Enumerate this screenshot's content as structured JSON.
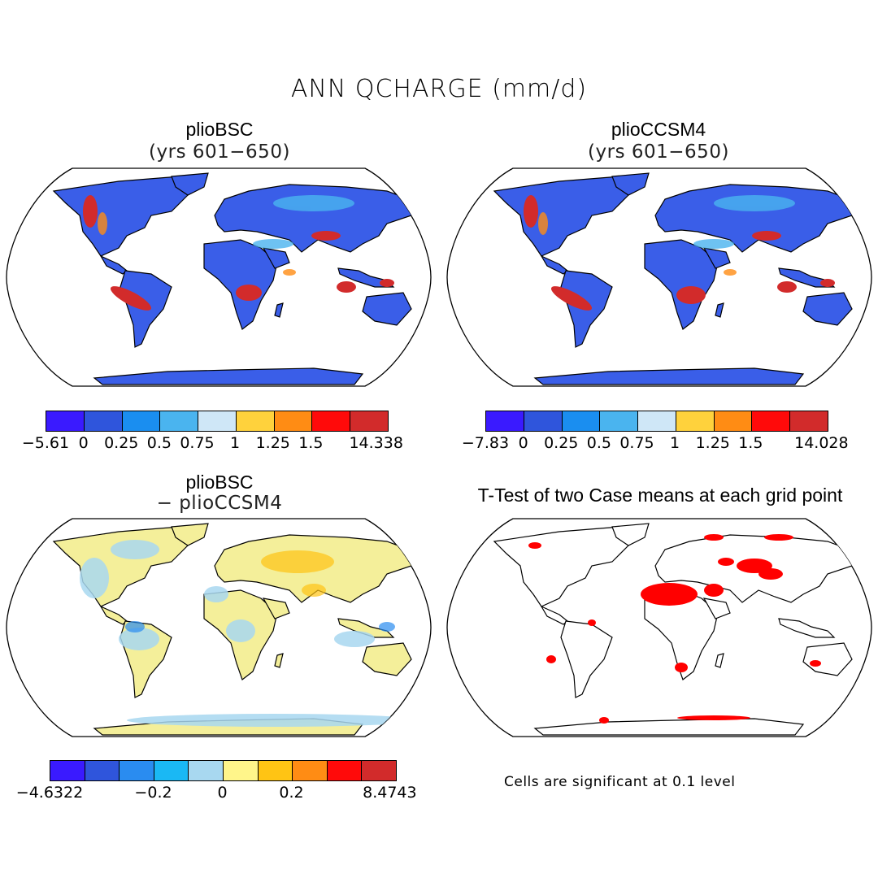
{
  "title": "ANN QCHARGE (mm/d)",
  "panels": {
    "top_left": {
      "title": "plioBSC",
      "subtitle": "(yrs 601−650)"
    },
    "top_right": {
      "title": "plioCCSM4",
      "subtitle": "(yrs 601−650)"
    },
    "bottom_left": {
      "title": "plioBSC",
      "subtitle": "− plioCCSM4"
    },
    "bottom_right": {
      "title": "T-Test of two Case means at each grid point"
    }
  },
  "colorbars": {
    "top_left": {
      "labels": [
        "−5.61",
        "0",
        "0.25",
        "0.5",
        "0.75",
        "1",
        "1.25",
        "1.5",
        "14.338"
      ],
      "colors": [
        "#3a1aff",
        "#2f55dc",
        "#1a8ef0",
        "#4ab4ef",
        "#cfe7f7",
        "#ffd23c",
        "#ff8c14",
        "#ff0a0a",
        "#d22b2b"
      ]
    },
    "top_right": {
      "labels": [
        "−7.83",
        "0",
        "0.25",
        "0.5",
        "0.75",
        "1",
        "1.25",
        "1.5",
        "14.028"
      ],
      "colors": [
        "#3a1aff",
        "#2f55dc",
        "#1a8ef0",
        "#4ab4ef",
        "#cfe7f7",
        "#ffd23c",
        "#ff8c14",
        "#ff0a0a",
        "#d22b2b"
      ]
    },
    "bottom_left": {
      "labels": [
        "−4.6322",
        "−0.2",
        "0",
        "0.2",
        "8.4743"
      ],
      "colors": [
        "#3a1aff",
        "#2f55dc",
        "#2a8cf0",
        "#1ab8f4",
        "#a8d8f0",
        "#fff58a",
        "#ffc414",
        "#ff8c14",
        "#ff0a0a",
        "#d22b2b"
      ]
    }
  },
  "significance_note": "Cells are significant at 0.1 level",
  "map_colors": {
    "ocean": "#ffffff",
    "land_top": "#3a5ee8",
    "land_diff": "#f4ef9a",
    "significant": "#ff0000"
  }
}
